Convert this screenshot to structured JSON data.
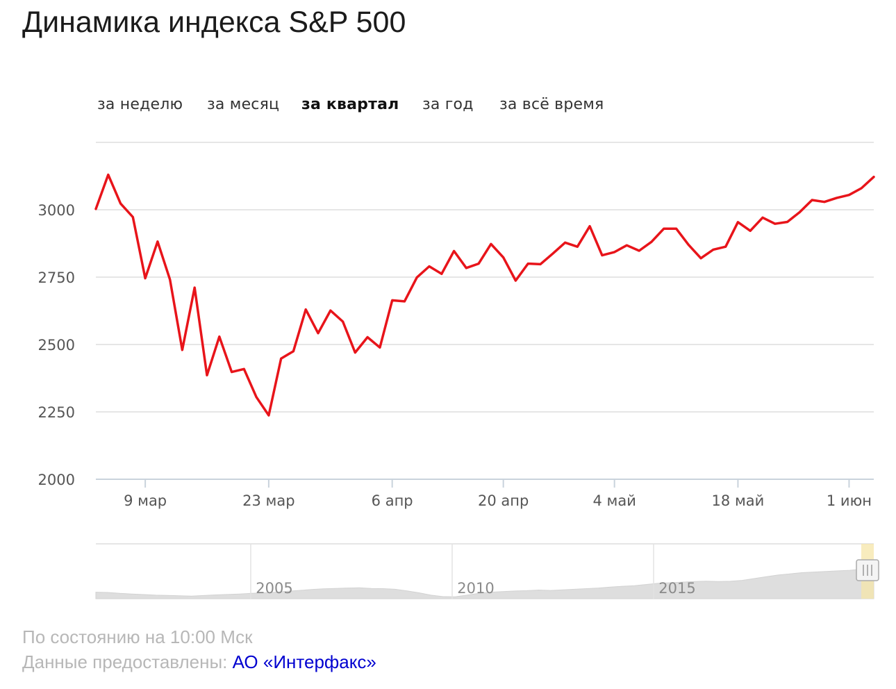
{
  "title": "Динамика индекса S&P 500",
  "tabs": [
    {
      "label": "за неделю",
      "active": false
    },
    {
      "label": "за месяц",
      "active": false
    },
    {
      "label": "за квартал",
      "active": true
    },
    {
      "label": "за год",
      "active": false
    },
    {
      "label": "за всё время",
      "active": false
    }
  ],
  "colors": {
    "line": "#e8141a",
    "grid": "#dddddd",
    "overview_fill": "#dedede",
    "handle": "#f5e6a8",
    "link": "#0000d0"
  },
  "chart_data": {
    "type": "line",
    "ylim": [
      2000,
      3250
    ],
    "yticks": [
      2000,
      2250,
      2500,
      2750,
      3000
    ],
    "ytick_labels": [
      "2000",
      "2250",
      "2500",
      "2750",
      "3000"
    ],
    "xticks": [
      {
        "x": 4,
        "label": "9 мар"
      },
      {
        "x": 14,
        "label": "23 мар"
      },
      {
        "x": 24,
        "label": "6 апр"
      },
      {
        "x": 33,
        "label": "20 апр"
      },
      {
        "x": 42,
        "label": "4 май"
      },
      {
        "x": 52,
        "label": "18 май"
      },
      {
        "x": 61,
        "label": "1 июн"
      }
    ],
    "xlim": [
      0,
      63
    ],
    "grid": true,
    "legend": "none",
    "series": [
      {
        "values": [
          3003,
          3130,
          3023,
          2973,
          2746,
          2882,
          2741,
          2480,
          2711,
          2386,
          2529,
          2398,
          2409,
          2305,
          2237,
          2448,
          2475,
          2630,
          2542,
          2626,
          2585,
          2470,
          2527,
          2489,
          2664,
          2660,
          2749,
          2790,
          2762,
          2847,
          2784,
          2800,
          2873,
          2823,
          2737,
          2800,
          2798,
          2837,
          2878,
          2863,
          2939,
          2831,
          2843,
          2868,
          2848,
          2881,
          2930,
          2930,
          2870,
          2820,
          2852,
          2863,
          2954,
          2922,
          2971,
          2948,
          2955,
          2991,
          3036,
          3029,
          3044,
          3055,
          3080,
          3122
        ]
      }
    ],
    "overview": {
      "year_labels": [
        "2005",
        "2010",
        "2015"
      ],
      "values": [
        1150,
        1130,
        1050,
        1000,
        950,
        900,
        880,
        850,
        820,
        870,
        920,
        960,
        1000,
        1050,
        1090,
        1150,
        1230,
        1300,
        1380,
        1430,
        1470,
        1500,
        1520,
        1460,
        1450,
        1400,
        1260,
        1100,
        900,
        780,
        760,
        900,
        1050,
        1150,
        1200,
        1250,
        1280,
        1330,
        1300,
        1350,
        1400,
        1450,
        1500,
        1580,
        1650,
        1700,
        1800,
        1900,
        1950,
        2000,
        2050,
        2080,
        2050,
        2070,
        2150,
        2300,
        2450,
        2600,
        2700,
        2800,
        2850,
        2900,
        2950,
        3000,
        3100,
        3050
      ]
    }
  },
  "footer": {
    "status": "По состоянию на 10:00 Мск",
    "source_prefix": "Данные предоставлены:",
    "source_link": "АО «Интерфакс»"
  }
}
